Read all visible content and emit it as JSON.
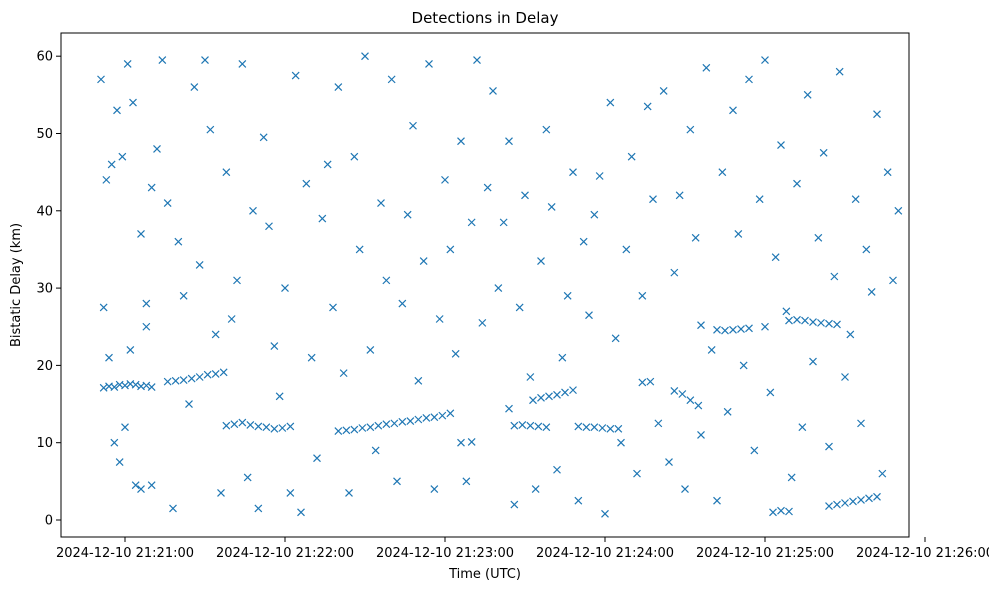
{
  "chart_data": {
    "type": "scatter",
    "title": "Detections in Delay",
    "xlabel": "Time (UTC)",
    "ylabel": "Bistatic Delay (km)",
    "x_axis_type": "time",
    "xlim": [
      "2024-12-10 21:20:36",
      "2024-12-10 21:25:54"
    ],
    "ylim": [
      -2.2,
      63
    ],
    "x_ticks": [
      "2024-12-10 21:21:00",
      "2024-12-10 21:22:00",
      "2024-12-10 21:23:00",
      "2024-12-10 21:24:00",
      "2024-12-10 21:25:00",
      "2024-12-10 21:26:00"
    ],
    "y_ticks": [
      0,
      10,
      20,
      30,
      40,
      50,
      60
    ],
    "grid": false,
    "legend": "none",
    "marker": "x",
    "color": "#1f77b4",
    "points": [
      [
        "2024-12-10 21:20:52",
        17.1
      ],
      [
        "2024-12-10 21:20:54",
        17.3
      ],
      [
        "2024-12-10 21:20:56",
        17.2
      ],
      [
        "2024-12-10 21:20:58",
        17.5
      ],
      [
        "2024-12-10 21:21:00",
        17.4
      ],
      [
        "2024-12-10 21:21:02",
        17.6
      ],
      [
        "2024-12-10 21:21:04",
        17.5
      ],
      [
        "2024-12-10 21:21:06",
        17.3
      ],
      [
        "2024-12-10 21:21:08",
        17.4
      ],
      [
        "2024-12-10 21:21:10",
        17.2
      ],
      [
        "2024-12-10 21:21:16",
        17.9
      ],
      [
        "2024-12-10 21:21:19",
        18.0
      ],
      [
        "2024-12-10 21:21:22",
        18.1
      ],
      [
        "2024-12-10 21:21:25",
        18.3
      ],
      [
        "2024-12-10 21:21:28",
        18.5
      ],
      [
        "2024-12-10 21:21:31",
        18.8
      ],
      [
        "2024-12-10 21:21:34",
        18.9
      ],
      [
        "2024-12-10 21:21:37",
        19.1
      ],
      [
        "2024-12-10 21:21:38",
        12.2
      ],
      [
        "2024-12-10 21:21:41",
        12.4
      ],
      [
        "2024-12-10 21:21:44",
        12.6
      ],
      [
        "2024-12-10 21:21:47",
        12.3
      ],
      [
        "2024-12-10 21:21:50",
        12.1
      ],
      [
        "2024-12-10 21:21:53",
        12.0
      ],
      [
        "2024-12-10 21:21:56",
        11.8
      ],
      [
        "2024-12-10 21:21:59",
        11.9
      ],
      [
        "2024-12-10 21:22:02",
        12.1
      ],
      [
        "2024-12-10 21:22:20",
        11.5
      ],
      [
        "2024-12-10 21:22:23",
        11.6
      ],
      [
        "2024-12-10 21:22:26",
        11.7
      ],
      [
        "2024-12-10 21:22:29",
        11.9
      ],
      [
        "2024-12-10 21:22:32",
        12.0
      ],
      [
        "2024-12-10 21:22:35",
        12.2
      ],
      [
        "2024-12-10 21:22:38",
        12.4
      ],
      [
        "2024-12-10 21:22:41",
        12.5
      ],
      [
        "2024-12-10 21:22:44",
        12.7
      ],
      [
        "2024-12-10 21:22:47",
        12.8
      ],
      [
        "2024-12-10 21:22:50",
        13.0
      ],
      [
        "2024-12-10 21:22:53",
        13.2
      ],
      [
        "2024-12-10 21:22:56",
        13.3
      ],
      [
        "2024-12-10 21:22:59",
        13.5
      ],
      [
        "2024-12-10 21:23:02",
        13.8
      ],
      [
        "2024-12-10 21:23:06",
        10.0
      ],
      [
        "2024-12-10 21:23:10",
        10.1
      ],
      [
        "2024-12-10 21:23:26",
        12.2
      ],
      [
        "2024-12-10 21:23:29",
        12.3
      ],
      [
        "2024-12-10 21:23:32",
        12.2
      ],
      [
        "2024-12-10 21:23:35",
        12.1
      ],
      [
        "2024-12-10 21:23:38",
        12.0
      ],
      [
        "2024-12-10 21:23:24",
        14.4
      ],
      [
        "2024-12-10 21:23:33",
        15.5
      ],
      [
        "2024-12-10 21:23:36",
        15.8
      ],
      [
        "2024-12-10 21:23:39",
        16.0
      ],
      [
        "2024-12-10 21:23:42",
        16.2
      ],
      [
        "2024-12-10 21:23:45",
        16.5
      ],
      [
        "2024-12-10 21:23:48",
        16.8
      ],
      [
        "2024-12-10 21:23:50",
        12.1
      ],
      [
        "2024-12-10 21:23:53",
        12.0
      ],
      [
        "2024-12-10 21:23:56",
        12.0
      ],
      [
        "2024-12-10 21:23:59",
        11.9
      ],
      [
        "2024-12-10 21:24:02",
        11.8
      ],
      [
        "2024-12-10 21:24:05",
        11.8
      ],
      [
        "2024-12-10 21:24:14",
        17.8
      ],
      [
        "2024-12-10 21:24:17",
        17.9
      ],
      [
        "2024-12-10 21:24:26",
        16.7
      ],
      [
        "2024-12-10 21:24:29",
        16.3
      ],
      [
        "2024-12-10 21:24:32",
        15.5
      ],
      [
        "2024-12-10 21:24:35",
        14.8
      ],
      [
        "2024-12-10 21:24:36",
        25.2
      ],
      [
        "2024-12-10 21:24:42",
        24.6
      ],
      [
        "2024-12-10 21:24:45",
        24.5
      ],
      [
        "2024-12-10 21:24:48",
        24.6
      ],
      [
        "2024-12-10 21:24:51",
        24.7
      ],
      [
        "2024-12-10 21:24:54",
        24.8
      ],
      [
        "2024-12-10 21:25:00",
        25.0
      ],
      [
        "2024-12-10 21:25:09",
        25.8
      ],
      [
        "2024-12-10 21:25:12",
        25.9
      ],
      [
        "2024-12-10 21:25:15",
        25.8
      ],
      [
        "2024-12-10 21:25:18",
        25.6
      ],
      [
        "2024-12-10 21:25:21",
        25.5
      ],
      [
        "2024-12-10 21:25:24",
        25.4
      ],
      [
        "2024-12-10 21:25:27",
        25.3
      ],
      [
        "2024-12-10 21:25:03",
        1.0
      ],
      [
        "2024-12-10 21:25:06",
        1.2
      ],
      [
        "2024-12-10 21:25:09",
        1.1
      ],
      [
        "2024-12-10 21:25:24",
        1.8
      ],
      [
        "2024-12-10 21:25:27",
        2.0
      ],
      [
        "2024-12-10 21:25:30",
        2.2
      ],
      [
        "2024-12-10 21:25:33",
        2.4
      ],
      [
        "2024-12-10 21:25:36",
        2.6
      ],
      [
        "2024-12-10 21:25:39",
        2.8
      ],
      [
        "2024-12-10 21:25:42",
        3.0
      ],
      [
        "2024-12-10 21:20:51",
        57.0
      ],
      [
        "2024-12-10 21:20:53",
        44.0
      ],
      [
        "2024-12-10 21:20:55",
        46.0
      ],
      [
        "2024-12-10 21:20:57",
        53.0
      ],
      [
        "2024-12-10 21:20:59",
        47.0
      ],
      [
        "2024-12-10 21:21:01",
        59.0
      ],
      [
        "2024-12-10 21:21:03",
        54.0
      ],
      [
        "2024-12-10 21:21:06",
        37.0
      ],
      [
        "2024-12-10 21:21:08",
        28.0
      ],
      [
        "2024-12-10 21:21:10",
        43.0
      ],
      [
        "2024-12-10 21:20:52",
        27.5
      ],
      [
        "2024-12-10 21:20:54",
        21.0
      ],
      [
        "2024-12-10 21:20:56",
        10.0
      ],
      [
        "2024-12-10 21:20:58",
        7.5
      ],
      [
        "2024-12-10 21:21:00",
        12.0
      ],
      [
        "2024-12-10 21:21:02",
        22.0
      ],
      [
        "2024-12-10 21:21:04",
        4.5
      ],
      [
        "2024-12-10 21:21:06",
        4.0
      ],
      [
        "2024-12-10 21:21:08",
        25.0
      ],
      [
        "2024-12-10 21:21:10",
        4.5
      ],
      [
        "2024-12-10 21:21:12",
        48.0
      ],
      [
        "2024-12-10 21:21:14",
        59.5
      ],
      [
        "2024-12-10 21:21:16",
        41.0
      ],
      [
        "2024-12-10 21:21:18",
        1.5
      ],
      [
        "2024-12-10 21:21:20",
        36.0
      ],
      [
        "2024-12-10 21:21:22",
        29.0
      ],
      [
        "2024-12-10 21:21:24",
        15.0
      ],
      [
        "2024-12-10 21:21:26",
        56.0
      ],
      [
        "2024-12-10 21:21:28",
        33.0
      ],
      [
        "2024-12-10 21:21:30",
        59.5
      ],
      [
        "2024-12-10 21:21:32",
        50.5
      ],
      [
        "2024-12-10 21:21:34",
        24.0
      ],
      [
        "2024-12-10 21:21:36",
        3.5
      ],
      [
        "2024-12-10 21:21:38",
        45.0
      ],
      [
        "2024-12-10 21:21:40",
        26.0
      ],
      [
        "2024-12-10 21:21:42",
        31.0
      ],
      [
        "2024-12-10 21:21:44",
        59.0
      ],
      [
        "2024-12-10 21:21:46",
        5.5
      ],
      [
        "2024-12-10 21:21:48",
        40.0
      ],
      [
        "2024-12-10 21:21:50",
        1.5
      ],
      [
        "2024-12-10 21:21:52",
        49.5
      ],
      [
        "2024-12-10 21:21:54",
        38.0
      ],
      [
        "2024-12-10 21:21:56",
        22.5
      ],
      [
        "2024-12-10 21:21:58",
        16.0
      ],
      [
        "2024-12-10 21:22:00",
        30.0
      ],
      [
        "2024-12-10 21:22:02",
        3.5
      ],
      [
        "2024-12-10 21:22:04",
        57.5
      ],
      [
        "2024-12-10 21:22:06",
        1.0
      ],
      [
        "2024-12-10 21:22:08",
        43.5
      ],
      [
        "2024-12-10 21:22:10",
        21.0
      ],
      [
        "2024-12-10 21:22:12",
        8.0
      ],
      [
        "2024-12-10 21:22:14",
        39.0
      ],
      [
        "2024-12-10 21:22:16",
        46.0
      ],
      [
        "2024-12-10 21:22:18",
        27.5
      ],
      [
        "2024-12-10 21:22:20",
        56.0
      ],
      [
        "2024-12-10 21:22:22",
        19.0
      ],
      [
        "2024-12-10 21:22:24",
        3.5
      ],
      [
        "2024-12-10 21:22:26",
        47.0
      ],
      [
        "2024-12-10 21:22:28",
        35.0
      ],
      [
        "2024-12-10 21:22:30",
        60.0
      ],
      [
        "2024-12-10 21:22:32",
        22.0
      ],
      [
        "2024-12-10 21:22:34",
        9.0
      ],
      [
        "2024-12-10 21:22:36",
        41.0
      ],
      [
        "2024-12-10 21:22:38",
        31.0
      ],
      [
        "2024-12-10 21:22:40",
        57.0
      ],
      [
        "2024-12-10 21:22:42",
        5.0
      ],
      [
        "2024-12-10 21:22:44",
        28.0
      ],
      [
        "2024-12-10 21:22:46",
        39.5
      ],
      [
        "2024-12-10 21:22:48",
        51.0
      ],
      [
        "2024-12-10 21:22:50",
        18.0
      ],
      [
        "2024-12-10 21:22:52",
        33.5
      ],
      [
        "2024-12-10 21:22:54",
        59.0
      ],
      [
        "2024-12-10 21:22:56",
        4.0
      ],
      [
        "2024-12-10 21:22:58",
        26.0
      ],
      [
        "2024-12-10 21:23:00",
        44.0
      ],
      [
        "2024-12-10 21:23:02",
        35.0
      ],
      [
        "2024-12-10 21:23:04",
        21.5
      ],
      [
        "2024-12-10 21:23:06",
        49.0
      ],
      [
        "2024-12-10 21:23:08",
        5.0
      ],
      [
        "2024-12-10 21:23:10",
        38.5
      ],
      [
        "2024-12-10 21:23:12",
        59.5
      ],
      [
        "2024-12-10 21:23:14",
        25.5
      ],
      [
        "2024-12-10 21:23:16",
        43.0
      ],
      [
        "2024-12-10 21:23:18",
        55.5
      ],
      [
        "2024-12-10 21:23:20",
        30.0
      ],
      [
        "2024-12-10 21:23:22",
        38.5
      ],
      [
        "2024-12-10 21:23:24",
        49.0
      ],
      [
        "2024-12-10 21:23:26",
        2.0
      ],
      [
        "2024-12-10 21:23:28",
        27.5
      ],
      [
        "2024-12-10 21:23:30",
        42.0
      ],
      [
        "2024-12-10 21:23:32",
        18.5
      ],
      [
        "2024-12-10 21:23:34",
        4.0
      ],
      [
        "2024-12-10 21:23:36",
        33.5
      ],
      [
        "2024-12-10 21:23:38",
        50.5
      ],
      [
        "2024-12-10 21:23:40",
        40.5
      ],
      [
        "2024-12-10 21:23:42",
        6.5
      ],
      [
        "2024-12-10 21:23:44",
        21.0
      ],
      [
        "2024-12-10 21:23:46",
        29.0
      ],
      [
        "2024-12-10 21:23:48",
        45.0
      ],
      [
        "2024-12-10 21:23:50",
        2.5
      ],
      [
        "2024-12-10 21:23:52",
        36.0
      ],
      [
        "2024-12-10 21:23:54",
        26.5
      ],
      [
        "2024-12-10 21:23:56",
        39.5
      ],
      [
        "2024-12-10 21:23:58",
        44.5
      ],
      [
        "2024-12-10 21:24:00",
        0.8
      ],
      [
        "2024-12-10 21:24:02",
        54.0
      ],
      [
        "2024-12-10 21:24:04",
        23.5
      ],
      [
        "2024-12-10 21:24:06",
        10.0
      ],
      [
        "2024-12-10 21:24:08",
        35.0
      ],
      [
        "2024-12-10 21:24:10",
        47.0
      ],
      [
        "2024-12-10 21:24:12",
        6.0
      ],
      [
        "2024-12-10 21:24:14",
        29.0
      ],
      [
        "2024-12-10 21:24:16",
        53.5
      ],
      [
        "2024-12-10 21:24:18",
        41.5
      ],
      [
        "2024-12-10 21:24:20",
        12.5
      ],
      [
        "2024-12-10 21:24:22",
        55.5
      ],
      [
        "2024-12-10 21:24:24",
        7.5
      ],
      [
        "2024-12-10 21:24:26",
        32.0
      ],
      [
        "2024-12-10 21:24:28",
        42.0
      ],
      [
        "2024-12-10 21:24:30",
        4.0
      ],
      [
        "2024-12-10 21:24:32",
        50.5
      ],
      [
        "2024-12-10 21:24:34",
        36.5
      ],
      [
        "2024-12-10 21:24:36",
        11.0
      ],
      [
        "2024-12-10 21:24:38",
        58.5
      ],
      [
        "2024-12-10 21:24:40",
        22.0
      ],
      [
        "2024-12-10 21:24:42",
        2.5
      ],
      [
        "2024-12-10 21:24:44",
        45.0
      ],
      [
        "2024-12-10 21:24:46",
        14.0
      ],
      [
        "2024-12-10 21:24:48",
        53.0
      ],
      [
        "2024-12-10 21:24:50",
        37.0
      ],
      [
        "2024-12-10 21:24:52",
        20.0
      ],
      [
        "2024-12-10 21:24:54",
        57.0
      ],
      [
        "2024-12-10 21:24:56",
        9.0
      ],
      [
        "2024-12-10 21:24:58",
        41.5
      ],
      [
        "2024-12-10 21:25:00",
        59.5
      ],
      [
        "2024-12-10 21:25:02",
        16.5
      ],
      [
        "2024-12-10 21:25:04",
        34.0
      ],
      [
        "2024-12-10 21:25:06",
        48.5
      ],
      [
        "2024-12-10 21:25:08",
        27.0
      ],
      [
        "2024-12-10 21:25:10",
        5.5
      ],
      [
        "2024-12-10 21:25:12",
        43.5
      ],
      [
        "2024-12-10 21:25:14",
        12.0
      ],
      [
        "2024-12-10 21:25:16",
        55.0
      ],
      [
        "2024-12-10 21:25:18",
        20.5
      ],
      [
        "2024-12-10 21:25:20",
        36.5
      ],
      [
        "2024-12-10 21:25:22",
        47.5
      ],
      [
        "2024-12-10 21:25:24",
        9.5
      ],
      [
        "2024-12-10 21:25:26",
        31.5
      ],
      [
        "2024-12-10 21:25:28",
        58.0
      ],
      [
        "2024-12-10 21:25:30",
        18.5
      ],
      [
        "2024-12-10 21:25:32",
        24.0
      ],
      [
        "2024-12-10 21:25:34",
        41.5
      ],
      [
        "2024-12-10 21:25:36",
        12.5
      ],
      [
        "2024-12-10 21:25:38",
        35.0
      ],
      [
        "2024-12-10 21:25:40",
        29.5
      ],
      [
        "2024-12-10 21:25:42",
        52.5
      ],
      [
        "2024-12-10 21:25:44",
        6.0
      ],
      [
        "2024-12-10 21:25:46",
        45.0
      ],
      [
        "2024-12-10 21:25:48",
        31.0
      ],
      [
        "2024-12-10 21:25:50",
        40.0
      ]
    ]
  }
}
